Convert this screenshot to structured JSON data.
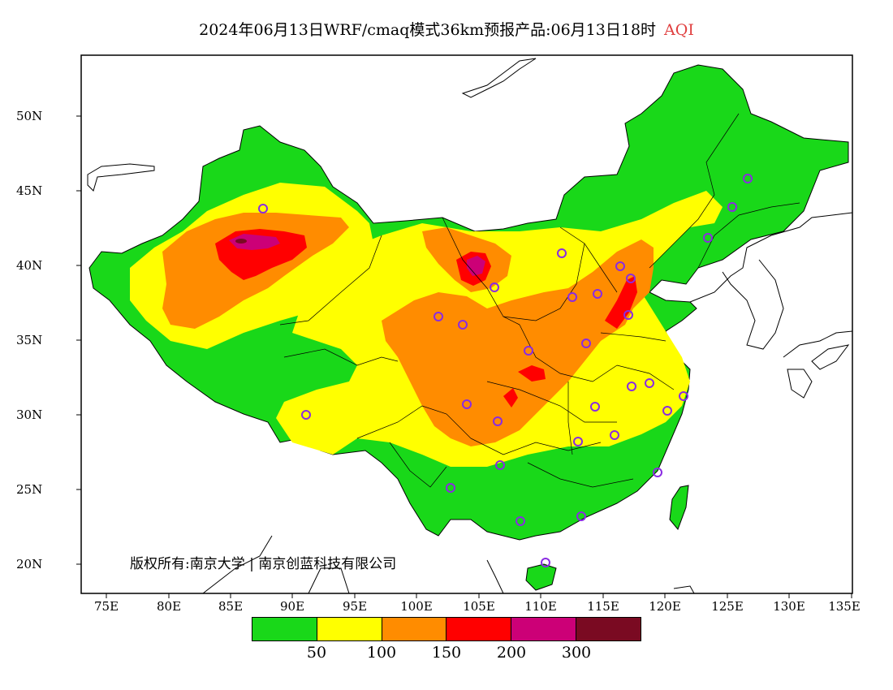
{
  "title": {
    "main": "2024年06月13日WRF/cmaq模式36km预报产品:06月13日18时",
    "variable": "AQI",
    "variable_color": "#e04040"
  },
  "copyright": "版权所有:南京大学 | 南京创蓝科技有限公司",
  "axes": {
    "lat_labels": [
      "50N",
      "45N",
      "40N",
      "35N",
      "30N",
      "25N",
      "20N"
    ],
    "lon_labels": [
      "75E",
      "80E",
      "85E",
      "90E",
      "95E",
      "100E",
      "105E",
      "110E",
      "115E",
      "120E",
      "125E",
      "130E",
      "135E"
    ]
  },
  "legend": {
    "colors": [
      "#19d819",
      "#ffff00",
      "#ff8c00",
      "#ff0000",
      "#cc0077",
      "#7a0a22"
    ],
    "labels": [
      "50",
      "100",
      "150",
      "200",
      "300"
    ]
  },
  "colors": {
    "good": "#19d819",
    "moderate": "#ffff00",
    "usg": "#ff8c00",
    "unhealthy": "#ff0000",
    "very_unhealthy": "#cc0077",
    "hazardous": "#7a0a22",
    "city_marker": "#8a2be2"
  }
}
